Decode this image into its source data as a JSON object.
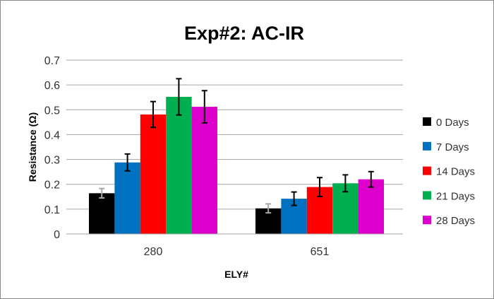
{
  "chart_data": {
    "type": "bar",
    "title": "Exp#2: AC-IR",
    "xlabel": "ELY#",
    "ylabel": "Resistance (Ω)",
    "ylim": [
      0,
      0.7
    ],
    "yticks": [
      "0",
      "0.1",
      "0.2",
      "0.3",
      "0.4",
      "0.5",
      "0.6",
      "0.7"
    ],
    "grid": true,
    "legend_position": "right",
    "categories": [
      "280",
      "651"
    ],
    "series": [
      {
        "name": "0 Days",
        "color": "#000000",
        "error_color": "#a6a6a6",
        "values": [
          0.164,
          0.103
        ],
        "errors": [
          0.019,
          0.018
        ]
      },
      {
        "name": "7 Days",
        "color": "#0070c0",
        "error_color": "#000000",
        "values": [
          0.288,
          0.142
        ],
        "errors": [
          0.034,
          0.027
        ]
      },
      {
        "name": "14 Days",
        "color": "#ff0000",
        "error_color": "#000000",
        "values": [
          0.481,
          0.189
        ],
        "errors": [
          0.052,
          0.038
        ]
      },
      {
        "name": "21 Days",
        "color": "#00b050",
        "error_color": "#000000",
        "values": [
          0.552,
          0.204
        ],
        "errors": [
          0.073,
          0.034
        ]
      },
      {
        "name": "28 Days",
        "color": "#dd00cc",
        "error_color": "#000000",
        "values": [
          0.512,
          0.22
        ],
        "errors": [
          0.065,
          0.031
        ]
      }
    ]
  }
}
